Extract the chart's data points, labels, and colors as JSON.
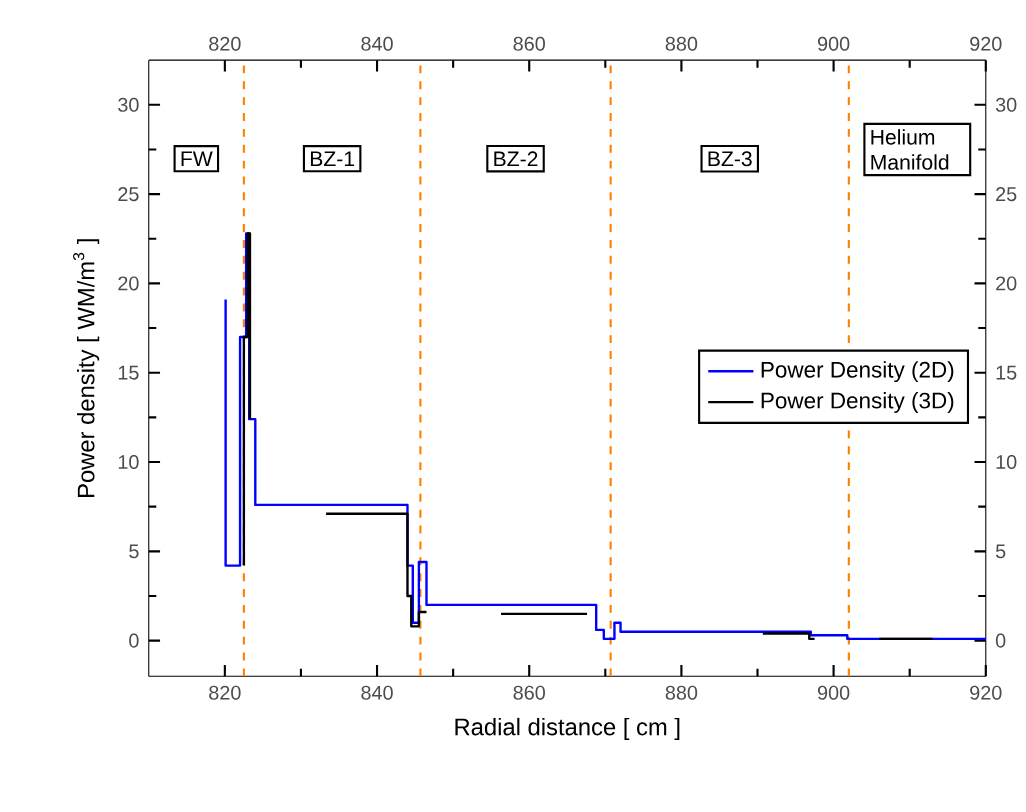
{
  "chart_data": {
    "type": "line",
    "xlabel": "Radial distance [ cm ]",
    "ylabel": "Power density [ WM/m$^{3}$ ]",
    "xlim": [
      810,
      920
    ],
    "xticks": [
      820,
      840,
      860,
      880,
      900,
      920
    ],
    "ylim": [
      -2,
      32.5
    ],
    "yticks": [
      0,
      5,
      10,
      15,
      20,
      25,
      30
    ],
    "x2lim": [
      810,
      920
    ],
    "x2ticks": [
      820,
      840,
      860,
      880,
      900,
      920
    ],
    "y2lim": [
      -2,
      32.5
    ],
    "y2ticks": [
      0,
      5,
      10,
      15,
      20,
      25,
      30
    ],
    "grid": false,
    "legend": "right",
    "marker": "none",
    "line_style": "solid",
    "series": [
      {
        "name": "Power Density (2D)",
        "color": "#0000ff",
        "x": [
          820.1,
          820.1,
          822,
          822,
          822.8,
          822.8,
          823.2,
          823.2,
          824,
          824,
          844,
          844,
          844.7,
          844.7,
          845.5,
          845.5,
          846.5,
          846.5,
          868.8,
          868.8,
          869.8,
          869.8,
          871.2,
          871.2,
          872,
          872,
          897,
          897,
          901.8,
          901.8,
          920
        ],
        "values": [
          19.1,
          4.2,
          4.2,
          17,
          17,
          22.8,
          22.8,
          12.4,
          12.4,
          7.6,
          7.6,
          4.2,
          4.2,
          1.0,
          1.0,
          4.4,
          4.4,
          2.0,
          2.0,
          0.6,
          0.6,
          0.1,
          0.1,
          1.0,
          1.0,
          0.5,
          0.5,
          0.3,
          0.3,
          0.1,
          0.1
        ]
      },
      {
        "name": "Power Density (3D)",
        "color": "#000000",
        "x": [
          822.5,
          822.5,
          823,
          823,
          823.3,
          823.3,
          828,
          833.3,
          844,
          844,
          844.5,
          844.5,
          845.5,
          845.5,
          846.5,
          850,
          856.3,
          867.6,
          880,
          890.7,
          896.8,
          896.8,
          897.5,
          900,
          906,
          913
        ],
        "values": [
          4.2,
          17,
          17,
          22.8,
          22.8,
          12.4,
          null,
          7.1,
          7.1,
          2.5,
          2.5,
          0.8,
          0.8,
          1.6,
          1.6,
          null,
          1.5,
          1.5,
          null,
          0.4,
          0.4,
          0.1,
          0.1,
          null,
          0.1,
          0.1
        ]
      }
    ],
    "ref_lines": [
      {
        "axis": "x",
        "value": 822.5,
        "color": "#ff8000",
        "line_style": "dashed"
      },
      {
        "axis": "x",
        "value": 845.7,
        "color": "#ff8000",
        "line_style": "dashed"
      },
      {
        "axis": "x",
        "value": 870.7,
        "color": "#ff8000",
        "line_style": "dashed"
      },
      {
        "axis": "x",
        "value": 902,
        "color": "#ff8000",
        "line_style": "dashed"
      }
    ],
    "annotations": [
      "FW",
      "BZ-1",
      "BZ-2",
      "BZ-3",
      "Helium Manifold"
    ]
  }
}
